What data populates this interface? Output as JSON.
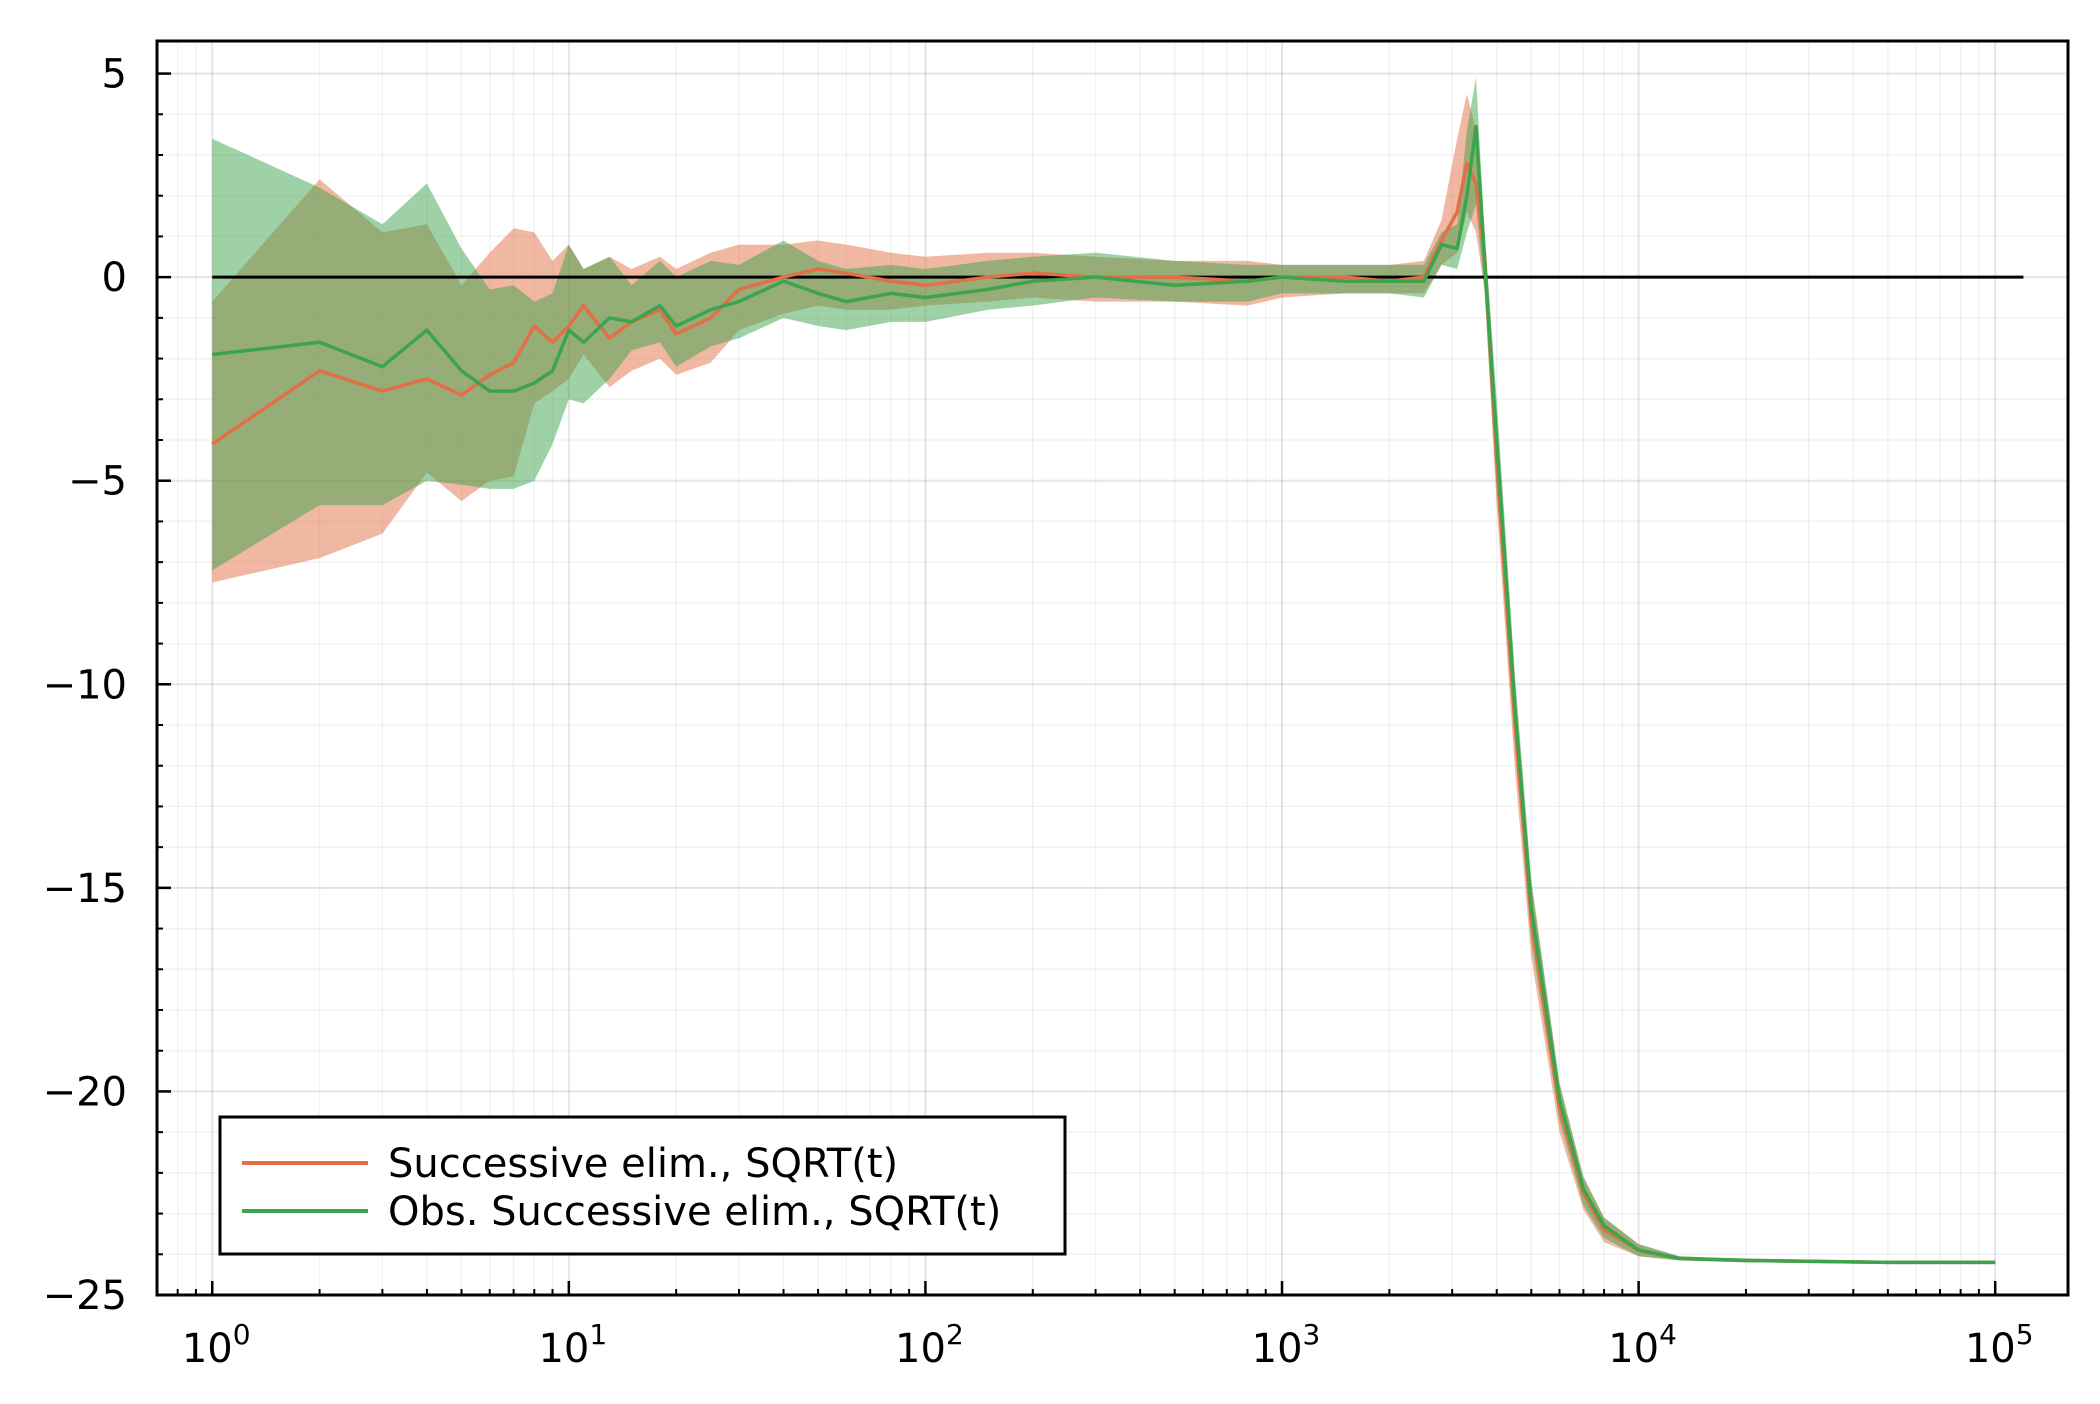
{
  "chart_data": {
    "type": "line",
    "title": "",
    "xlabel": "",
    "ylabel": "",
    "xscale": "log",
    "xlim": [
      0.7,
      160000
    ],
    "ylim": [
      -25,
      5.8
    ],
    "grid": true,
    "legend_position": "bottom-left",
    "x_ticks": [
      {
        "value": 1,
        "base": "10",
        "exp": "0"
      },
      {
        "value": 10,
        "base": "10",
        "exp": "1"
      },
      {
        "value": 100,
        "base": "10",
        "exp": "2"
      },
      {
        "value": 1000,
        "base": "10",
        "exp": "3"
      },
      {
        "value": 10000,
        "base": "10",
        "exp": "4"
      },
      {
        "value": 100000,
        "base": "10",
        "exp": "5"
      }
    ],
    "y_ticks": [
      {
        "value": 5,
        "label": "5"
      },
      {
        "value": 0,
        "label": "0"
      },
      {
        "value": -5,
        "label": "−5"
      },
      {
        "value": -10,
        "label": "−10"
      },
      {
        "value": -15,
        "label": "−15"
      },
      {
        "value": -20,
        "label": "−20"
      },
      {
        "value": -25,
        "label": "−25"
      }
    ],
    "reference_line": {
      "y": 0,
      "x_start": 1,
      "x_end": 120000,
      "color": "#000000"
    },
    "series": [
      {
        "name": "Successive elim., SQRT(t)",
        "color": "#e26f46",
        "band_opacity": 0.5,
        "x": [
          1,
          2,
          3,
          4,
          5,
          6,
          7,
          8,
          9,
          10,
          11,
          13,
          15,
          18,
          20,
          25,
          30,
          40,
          50,
          60,
          80,
          100,
          150,
          200,
          300,
          500,
          800,
          1000,
          1500,
          2000,
          2500,
          2800,
          3100,
          3300,
          3500,
          3700,
          4000,
          4500,
          5000,
          6000,
          7000,
          8000,
          10000,
          13000,
          20000,
          50000,
          100000
        ],
        "mean": [
          -4.1,
          -2.3,
          -2.8,
          -2.5,
          -2.9,
          -2.4,
          -2.1,
          -1.2,
          -1.6,
          -1.2,
          -0.7,
          -1.5,
          -1.1,
          -0.8,
          -1.4,
          -1.0,
          -0.3,
          0.0,
          0.2,
          0.1,
          -0.1,
          -0.2,
          0.0,
          0.1,
          0.0,
          0.0,
          -0.1,
          0.0,
          0.0,
          -0.1,
          0.0,
          0.9,
          1.6,
          2.8,
          2.3,
          0.5,
          -4.5,
          -11.0,
          -15.8,
          -20.4,
          -22.5,
          -23.4,
          -23.9,
          -24.1,
          -24.15,
          -24.2,
          -24.2
        ],
        "upper": [
          -0.6,
          2.4,
          1.1,
          1.3,
          -0.2,
          0.6,
          1.2,
          1.1,
          0.4,
          0.8,
          0.2,
          0.5,
          0.2,
          0.5,
          0.2,
          0.6,
          0.8,
          0.8,
          0.9,
          0.8,
          0.6,
          0.5,
          0.6,
          0.6,
          0.5,
          0.4,
          0.4,
          0.3,
          0.3,
          0.3,
          0.4,
          1.4,
          3.4,
          4.5,
          3.6,
          1.2,
          -3.5,
          -10.0,
          -14.9,
          -19.8,
          -22.1,
          -23.1,
          -23.75,
          -24.05,
          -24.12,
          -24.18,
          -24.18
        ],
        "lower": [
          -7.5,
          -6.9,
          -6.3,
          -4.8,
          -5.5,
          -5.0,
          -4.9,
          -3.1,
          -2.8,
          -2.5,
          -1.9,
          -2.7,
          -2.3,
          -2.0,
          -2.4,
          -2.1,
          -1.3,
          -0.9,
          -0.7,
          -0.8,
          -0.8,
          -0.7,
          -0.6,
          -0.5,
          -0.6,
          -0.6,
          -0.7,
          -0.5,
          -0.4,
          -0.4,
          -0.4,
          0.3,
          0.6,
          1.6,
          1.1,
          -0.3,
          -5.6,
          -12.1,
          -16.7,
          -21.0,
          -22.9,
          -23.7,
          -24.05,
          -24.15,
          -24.2,
          -24.22,
          -24.22
        ]
      },
      {
        "name": "Obs. Successive elim., SQRT(t)",
        "color": "#3da44d",
        "band_opacity": 0.5,
        "x": [
          1,
          2,
          3,
          4,
          5,
          6,
          7,
          8,
          9,
          10,
          11,
          13,
          15,
          18,
          20,
          25,
          30,
          40,
          50,
          60,
          80,
          100,
          150,
          200,
          300,
          500,
          800,
          1000,
          1500,
          2000,
          2500,
          2800,
          3100,
          3300,
          3500,
          3700,
          4000,
          4500,
          5000,
          6000,
          7000,
          8000,
          10000,
          13000,
          20000,
          50000,
          100000
        ],
        "mean": [
          -1.9,
          -1.6,
          -2.2,
          -1.3,
          -2.3,
          -2.8,
          -2.8,
          -2.6,
          -2.3,
          -1.3,
          -1.6,
          -1.0,
          -1.1,
          -0.7,
          -1.2,
          -0.8,
          -0.6,
          -0.1,
          -0.4,
          -0.6,
          -0.4,
          -0.5,
          -0.3,
          -0.1,
          0.0,
          -0.2,
          -0.1,
          0.0,
          -0.1,
          -0.1,
          -0.1,
          0.8,
          0.7,
          2.0,
          3.7,
          0.4,
          -4.0,
          -10.6,
          -15.5,
          -20.2,
          -22.4,
          -23.3,
          -23.9,
          -24.1,
          -24.15,
          -24.2,
          -24.2
        ],
        "upper": [
          3.4,
          2.2,
          1.3,
          2.3,
          0.7,
          -0.3,
          -0.2,
          -0.6,
          -0.4,
          0.8,
          0.2,
          0.5,
          -0.2,
          0.4,
          0.0,
          0.4,
          0.3,
          0.9,
          0.4,
          0.2,
          0.3,
          0.2,
          0.4,
          0.5,
          0.6,
          0.4,
          0.3,
          0.3,
          0.3,
          0.3,
          0.3,
          1.1,
          1.3,
          3.6,
          4.9,
          1.1,
          -3.0,
          -9.8,
          -14.8,
          -19.8,
          -22.1,
          -23.1,
          -23.75,
          -24.05,
          -24.12,
          -24.18,
          -24.18
        ],
        "lower": [
          -7.2,
          -5.6,
          -5.6,
          -5.0,
          -5.1,
          -5.2,
          -5.2,
          -5.0,
          -4.1,
          -3.0,
          -3.1,
          -2.5,
          -1.8,
          -1.6,
          -2.2,
          -1.7,
          -1.5,
          -1.0,
          -1.2,
          -1.3,
          -1.1,
          -1.1,
          -0.8,
          -0.7,
          -0.5,
          -0.6,
          -0.6,
          -0.4,
          -0.4,
          -0.4,
          -0.5,
          0.3,
          0.2,
          1.1,
          1.8,
          -0.4,
          -5.2,
          -11.5,
          -16.3,
          -20.7,
          -22.8,
          -23.6,
          -24.05,
          -24.15,
          -24.2,
          -24.22,
          -24.22
        ]
      }
    ]
  }
}
